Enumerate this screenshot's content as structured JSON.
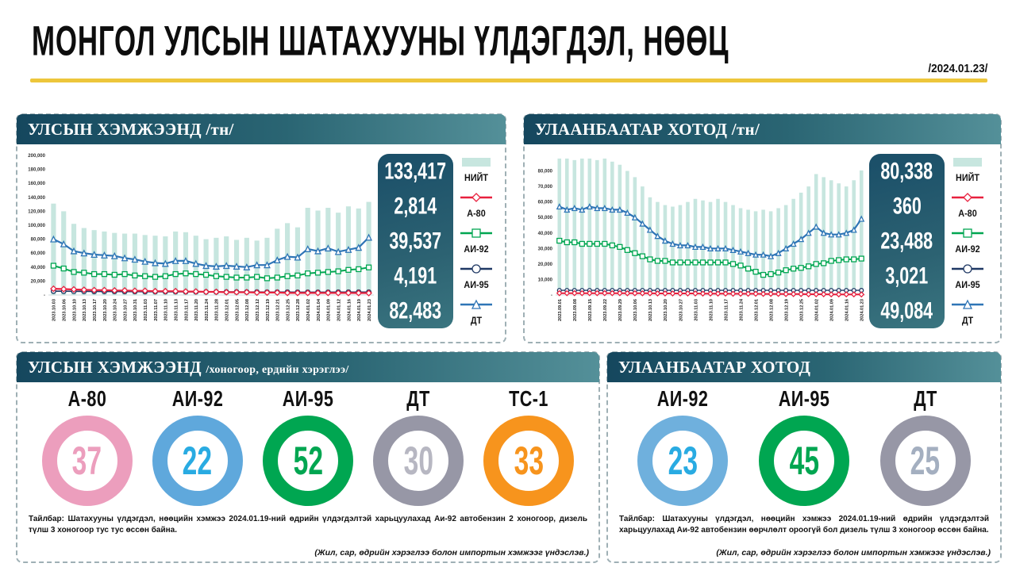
{
  "page": {
    "title": "МОНГОЛ УЛСЫН ШАТАХУУНЫ ҮЛДЭГДЭЛ, НӨӨЦ",
    "date": "/2024.01.23/"
  },
  "colors": {
    "accent_yellow": "#edc63b",
    "header_teal_dark": "#15475e",
    "header_teal_light": "#549099",
    "bar": "#c7e6df",
    "a80_red": "#e8203e",
    "ai92_green": "#00a651",
    "ai95_navy": "#1f3864",
    "dt_blue": "#2e75b6"
  },
  "legend": [
    {
      "label": "НИЙТ",
      "marker": "bar",
      "color": "#c7e6df"
    },
    {
      "label": "А-80",
      "marker": "diamond",
      "color": "#e8203e"
    },
    {
      "label": "АИ-92",
      "marker": "square",
      "color": "#00a651"
    },
    {
      "label": "АИ-95",
      "marker": "circle",
      "color": "#1f3864"
    },
    {
      "label": "ДТ",
      "marker": "triangle",
      "color": "#2e75b6"
    }
  ],
  "chart_data": [
    {
      "type": "bar+line",
      "title": "УЛСЫН ХЭМЖЭЭНД /тн/",
      "ylim": [
        0,
        200000
      ],
      "grid": false,
      "legend_position": "right",
      "yticks": [
        {
          "v": 200000,
          "t": "200,000"
        },
        {
          "v": 180000,
          "t": "180,000"
        },
        {
          "v": 160000,
          "t": "160,000"
        },
        {
          "v": 140000,
          "t": "140,000"
        },
        {
          "v": 120000,
          "t": "120,000"
        },
        {
          "v": 100000,
          "t": "100,000"
        },
        {
          "v": 80000,
          "t": "80,000"
        },
        {
          "v": 60000,
          "t": "60,000"
        },
        {
          "v": 40000,
          "t": "40,000"
        },
        {
          "v": 20000,
          "t": "20,000"
        },
        {
          "v": 0,
          "t": "-"
        }
      ],
      "categories": [
        "2023.10.03",
        "2023.10.06",
        "2023.10.10",
        "2023.10.13",
        "2023.10.17",
        "2023.10.20",
        "2023.10.24",
        "2023.10.27",
        "2023.10.31",
        "2023.11.03",
        "2023.11.07",
        "2023.11.10",
        "2023.11.13",
        "2023.11.17",
        "2023.11.20",
        "2023.11.24",
        "2023.11.28",
        "2023.12.01",
        "2023.12.05",
        "2023.12.08",
        "2023.12.12",
        "2023.12.19",
        "2023.12.21",
        "2023.12.25",
        "2023.12.28",
        "2024.01.02",
        "2024.01.04",
        "2024.01.09",
        "2024.01.12",
        "2024.01.16",
        "2024.01.19",
        "2024.01.23"
      ],
      "series": [
        {
          "name": "НИЙТ",
          "type": "bar",
          "color": "#c7e6df",
          "values": [
            131000,
            120000,
            102000,
            96000,
            93000,
            91000,
            89000,
            88000,
            88000,
            86000,
            85000,
            84000,
            91000,
            90000,
            85000,
            80000,
            82000,
            84000,
            79000,
            82000,
            78000,
            82000,
            95000,
            103000,
            97000,
            125000,
            121000,
            125000,
            118000,
            127000,
            124000,
            133417
          ]
        },
        {
          "name": "АИ-95",
          "type": "line",
          "marker": "circle",
          "color": "#1f3864",
          "width": 1.6,
          "msize": 2.8,
          "values": [
            5500,
            5400,
            5300,
            5200,
            5100,
            5000,
            5000,
            4900,
            4900,
            4800,
            4800,
            4700,
            4700,
            4600,
            4600,
            4500,
            4500,
            4400,
            4400,
            4300,
            4300,
            4200,
            4200,
            4200,
            4100,
            4100,
            4100,
            4100,
            4200,
            4200,
            4200,
            4191
          ]
        },
        {
          "name": "А-80",
          "type": "line",
          "marker": "diamond",
          "color": "#e8203e",
          "width": 2.2,
          "msize": 3.4,
          "values": [
            9000,
            8500,
            8000,
            7500,
            7000,
            7000,
            6500,
            6500,
            6000,
            6000,
            5500,
            5500,
            5500,
            5000,
            5000,
            4500,
            4500,
            4000,
            4000,
            4000,
            3500,
            3500,
            3500,
            3000,
            3000,
            3000,
            3000,
            3000,
            2900,
            2900,
            2850,
            2814
          ]
        },
        {
          "name": "АИ-92",
          "type": "line",
          "marker": "square",
          "color": "#00a651",
          "width": 2,
          "msize": 3,
          "values": [
            42000,
            38000,
            33000,
            32000,
            30000,
            30000,
            29000,
            30000,
            28000,
            27000,
            26000,
            27000,
            30000,
            31000,
            30000,
            29000,
            27000,
            26000,
            25000,
            25000,
            26000,
            24000,
            25000,
            27000,
            28000,
            31000,
            32000,
            33000,
            34000,
            36000,
            37000,
            39537
          ]
        },
        {
          "name": "ДТ",
          "type": "line",
          "marker": "triangle",
          "color": "#2e75b6",
          "width": 2.2,
          "msize": 3.4,
          "values": [
            80000,
            73000,
            63000,
            60000,
            58000,
            57000,
            56000,
            53000,
            51000,
            48000,
            46000,
            45000,
            49000,
            49000,
            45000,
            42000,
            41000,
            42000,
            41000,
            40000,
            43000,
            43000,
            50000,
            55000,
            54000,
            66000,
            63000,
            67000,
            62000,
            65000,
            68000,
            82483
          ]
        }
      ],
      "latest_values": [
        "133,417",
        "2,814",
        "39,537",
        "4,191",
        "82,483"
      ]
    },
    {
      "type": "bar+line",
      "title": "УЛААНБААТАР ХОТОД /тн/",
      "ylim": [
        0,
        90000
      ],
      "grid": false,
      "legend_position": "right",
      "yticks": [
        {
          "v": 80000,
          "t": "80,000"
        },
        {
          "v": 70000,
          "t": "70,000"
        },
        {
          "v": 60000,
          "t": "60,000"
        },
        {
          "v": 50000,
          "t": "50,000"
        },
        {
          "v": 40000,
          "t": "40,000"
        },
        {
          "v": 30000,
          "t": "30,000"
        },
        {
          "v": 20000,
          "t": "20,000"
        },
        {
          "v": 10000,
          "t": "10,000"
        },
        {
          "v": 0,
          "t": "-"
        }
      ],
      "categories": [
        "2023.09.01",
        "",
        "2023.09.08",
        "",
        "2023.09.15",
        "",
        "2023.09.22",
        "",
        "2023.09.29",
        "",
        "2023.10.06",
        "",
        "2023.10.13",
        "",
        "2023.10.20",
        "",
        "2023.10.27",
        "",
        "2023.11.03",
        "",
        "2023.11.10",
        "",
        "2023.11.17",
        "",
        "2023.11.24",
        "",
        "2023.12.01",
        "",
        "2023.12.08",
        "",
        "2023.12.19",
        "",
        "2023.12.25",
        "",
        "2024.01.02",
        "",
        "2024.01.09",
        "",
        "2024.01.16",
        "",
        "2024.01.23"
      ],
      "series": [
        {
          "name": "НИЙТ",
          "type": "bar",
          "color": "#c7e6df",
          "values": [
            88000,
            88000,
            87000,
            88000,
            88000,
            87000,
            88000,
            86000,
            84000,
            80000,
            76000,
            70000,
            63000,
            60000,
            58000,
            57000,
            58000,
            60000,
            62000,
            61000,
            60000,
            62000,
            60000,
            58000,
            56000,
            55000,
            54000,
            55000,
            54000,
            56000,
            58000,
            62000,
            66000,
            70000,
            78000,
            76000,
            74000,
            72000,
            70000,
            74000,
            80338
          ]
        },
        {
          "name": "АИ-95",
          "type": "line",
          "marker": "circle",
          "color": "#1f3864",
          "width": 1.4,
          "msize": 2.4,
          "values": [
            3000,
            3000,
            3000,
            3000,
            3000,
            3000,
            3000,
            3000,
            3000,
            3000,
            3000,
            3000,
            3000,
            3000,
            3000,
            3000,
            3000,
            3000,
            3000,
            3000,
            3000,
            3000,
            3000,
            3000,
            3000,
            3000,
            3000,
            3000,
            3000,
            3000,
            3000,
            3000,
            3000,
            3000,
            3000,
            3000,
            3000,
            3000,
            3000,
            3000,
            3021
          ]
        },
        {
          "name": "А-80",
          "type": "line",
          "marker": "diamond",
          "color": "#e8203e",
          "width": 2,
          "msize": 3,
          "values": [
            1200,
            1200,
            1200,
            1200,
            1200,
            1200,
            1200,
            1200,
            1200,
            1100,
            1100,
            1100,
            1100,
            1000,
            1000,
            1000,
            1000,
            1000,
            1000,
            900,
            900,
            900,
            900,
            800,
            800,
            800,
            800,
            700,
            700,
            700,
            600,
            600,
            600,
            500,
            500,
            500,
            400,
            400,
            400,
            380,
            360
          ]
        },
        {
          "name": "АИ-92",
          "type": "line",
          "marker": "square",
          "color": "#00a651",
          "width": 2,
          "msize": 3,
          "values": [
            35000,
            34000,
            34000,
            33000,
            33000,
            33000,
            33000,
            32000,
            31000,
            29000,
            27000,
            25000,
            23000,
            22000,
            22000,
            21000,
            21000,
            21000,
            21000,
            21000,
            21000,
            21000,
            21000,
            20000,
            19000,
            17000,
            15000,
            13000,
            13500,
            14500,
            16000,
            17000,
            17500,
            18500,
            20000,
            20500,
            22000,
            22500,
            23000,
            23000,
            23488
          ]
        },
        {
          "name": "ДТ",
          "type": "line",
          "marker": "triangle",
          "color": "#2e75b6",
          "width": 2.2,
          "msize": 3,
          "values": [
            57000,
            55000,
            56000,
            55000,
            57000,
            56000,
            56000,
            55000,
            55000,
            53000,
            50000,
            46000,
            42000,
            38000,
            35000,
            33000,
            32000,
            32000,
            31000,
            31000,
            30000,
            30000,
            30000,
            29000,
            28000,
            27000,
            26000,
            26000,
            25000,
            27000,
            30000,
            33000,
            36000,
            40000,
            44000,
            40000,
            39000,
            39000,
            40000,
            42000,
            49084
          ]
        }
      ],
      "latest_values": [
        "80,338",
        "360",
        "23,488",
        "3,021",
        "49,084"
      ]
    }
  ],
  "gauges_national": {
    "header_main": "УЛСЫН ХЭМЖЭЭНД",
    "header_sub": "/хоногоор, ердийн хэрэглээ/",
    "items": [
      {
        "label": "А-80",
        "value": "37",
        "ring_color": "#ec9ebd",
        "value_color": "#ec9ebd"
      },
      {
        "label": "АИ-92",
        "value": "22",
        "ring_color": "#5fa8dc",
        "value_color": "#29abe2"
      },
      {
        "label": "АИ-95",
        "value": "52",
        "ring_color": "#00a651",
        "value_color": "#00a651"
      },
      {
        "label": "ДТ",
        "value": "30",
        "ring_color": "#9797a6",
        "value_color": "#b7b7c2"
      },
      {
        "label": "ТС-1",
        "value": "33",
        "ring_color": "#f7941d",
        "value_color": "#f7941d"
      }
    ],
    "note": "Тайлбар: Шатахууны үлдэгдэл, нөөцийн хэмжээ 2024.01.19-ний өдрийн үлдэгдэлтэй харьцуулахад Аи-92 автобензин 2 хоногоор, дизель түлш 3 хоногоор тус тус өссөн байна.",
    "source": "(Жил, сар, өдрийн хэрэглээ болон импортын хэмжээг үндэслэв.)"
  },
  "gauges_ub": {
    "header_main": "УЛААНБААТАР ХОТОД",
    "header_sub": "",
    "items": [
      {
        "label": "АИ-92",
        "value": "23",
        "ring_color": "#6fb0dd",
        "value_color": "#29abe2"
      },
      {
        "label": "АИ-95",
        "value": "45",
        "ring_color": "#00a651",
        "value_color": "#00a651"
      },
      {
        "label": "ДТ",
        "value": "25",
        "ring_color": "#9797a6",
        "value_color": "#a4afc0"
      }
    ],
    "note": "Тайлбар: Шатахууны үлдэгдэл, нөөцийн хэмжээ 2024.01.19-ний өдрийн үлдэгдэлтэй харьцуулахад Аи-92 автобензин өөрчлөлт ороогүй бол дизель түлш 3 хоногоор өссөн байна.",
    "source": "(Жил, сар, өдрийн хэрэглээ болон импортын хэмжээг үндэслэв.)"
  }
}
